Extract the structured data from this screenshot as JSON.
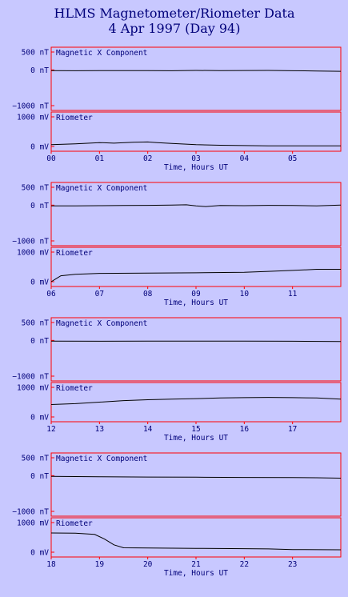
{
  "title": "HLMS Magnetometer/Riometer Data",
  "subtitle": "4 Apr 1997 (Day 94)",
  "colors": {
    "background": "#c8c8ff",
    "frame": "#ff0000",
    "text": "#00007a",
    "trace": "#000000"
  },
  "chart_data": [
    {
      "type": "line",
      "xlabel": "Time, Hours UT",
      "xlim": [
        0,
        6
      ],
      "x_ticks": [
        "00",
        "01",
        "02",
        "03",
        "04",
        "05"
      ],
      "panels": [
        {
          "label": "Magnetic X Component",
          "y_ticks": [
            "500 nT",
            "0 nT",
            "−1000 nT"
          ],
          "ylim": [
            -1000,
            500
          ],
          "series": [
            {
              "x": [
                0,
                0.5,
                1,
                1.5,
                2,
                2.5,
                3,
                3.5,
                4,
                4.5,
                5,
                5.5,
                6
              ],
              "y": [
                -20,
                -25,
                -20,
                -22,
                -20,
                -25,
                -15,
                -20,
                -18,
                -15,
                -25,
                -30,
                -40
              ]
            }
          ]
        },
        {
          "label": "Riometer",
          "y_ticks": [
            "1000 mV",
            "0 mV"
          ],
          "ylim": [
            0,
            1000
          ],
          "series": [
            {
              "x": [
                0,
                0.5,
                1,
                1.3,
                1.7,
                2,
                2.2,
                2.5,
                3,
                3.5,
                4,
                4.5,
                5,
                5.5,
                6
              ],
              "y": [
                60,
                90,
                130,
                110,
                140,
                150,
                130,
                100,
                60,
                40,
                30,
                20,
                20,
                20,
                20
              ]
            }
          ]
        }
      ]
    },
    {
      "type": "line",
      "xlabel": "Time, Hours UT",
      "xlim": [
        6,
        12
      ],
      "x_ticks": [
        "06",
        "07",
        "08",
        "09",
        "10",
        "11"
      ],
      "panels": [
        {
          "label": "Magnetic X Component",
          "y_ticks": [
            "500 nT",
            "0 nT",
            "−1000 nT"
          ],
          "ylim": [
            -1000,
            500
          ],
          "series": [
            {
              "x": [
                6,
                6.5,
                7,
                7.5,
                8,
                8.5,
                8.8,
                9,
                9.2,
                9.5,
                10,
                10.5,
                11,
                11.5,
                12
              ],
              "y": [
                -20,
                -20,
                -15,
                -10,
                -5,
                0,
                10,
                -20,
                -40,
                -10,
                -15,
                -5,
                -10,
                -20,
                0
              ]
            }
          ]
        },
        {
          "label": "Riometer",
          "y_ticks": [
            "1000 mV",
            "0 mV"
          ],
          "ylim": [
            0,
            1000
          ],
          "series": [
            {
              "x": [
                6,
                6.1,
                6.2,
                6.5,
                7,
                8,
                9,
                10,
                10.5,
                11,
                11.5,
                12
              ],
              "y": [
                0,
                100,
                200,
                250,
                280,
                290,
                300,
                320,
                350,
                380,
                420,
                420
              ]
            }
          ]
        }
      ]
    },
    {
      "type": "line",
      "xlabel": "Time, Hours UT",
      "xlim": [
        12,
        18
      ],
      "x_ticks": [
        "12",
        "13",
        "14",
        "15",
        "16",
        "17"
      ],
      "panels": [
        {
          "label": "Magnetic X Component",
          "y_ticks": [
            "500 nT",
            "0 nT",
            "−1000 nT"
          ],
          "ylim": [
            -1000,
            500
          ],
          "series": [
            {
              "x": [
                12,
                13,
                14,
                15,
                16,
                17,
                18
              ],
              "y": [
                -20,
                -25,
                -20,
                -20,
                -22,
                -25,
                -30
              ]
            }
          ]
        },
        {
          "label": "Riometer",
          "y_ticks": [
            "1000 mV",
            "0 mV"
          ],
          "ylim": [
            0,
            1000
          ],
          "series": [
            {
              "x": [
                12,
                12.5,
                13,
                13.5,
                14,
                14.5,
                15,
                15.5,
                16,
                16.5,
                17,
                17.5,
                18
              ],
              "y": [
                420,
                450,
                500,
                550,
                580,
                600,
                620,
                640,
                650,
                660,
                650,
                640,
                600
              ]
            }
          ]
        }
      ]
    },
    {
      "type": "line",
      "xlabel": "Time, Hours UT",
      "xlim": [
        18,
        24
      ],
      "x_ticks": [
        "18",
        "19",
        "20",
        "21",
        "22",
        "23"
      ],
      "panels": [
        {
          "label": "Magnetic X Component",
          "y_ticks": [
            "500 nT",
            "0 nT",
            "−1000 nT"
          ],
          "ylim": [
            -1000,
            500
          ],
          "series": [
            {
              "x": [
                18,
                19,
                20,
                21,
                22,
                23,
                23.5,
                24
              ],
              "y": [
                -20,
                -30,
                -40,
                -45,
                -50,
                -55,
                -60,
                -70
              ]
            }
          ]
        },
        {
          "label": "Riometer",
          "y_ticks": [
            "1000 mV",
            "0 mV"
          ],
          "ylim": [
            0,
            1000
          ],
          "series": [
            {
              "x": [
                18,
                18.5,
                18.9,
                19.1,
                19.3,
                19.5,
                20,
                21,
                22,
                22.5,
                23,
                24
              ],
              "y": [
                650,
                640,
                600,
                450,
                250,
                150,
                140,
                130,
                120,
                110,
                90,
                80
              ]
            }
          ]
        }
      ]
    }
  ]
}
